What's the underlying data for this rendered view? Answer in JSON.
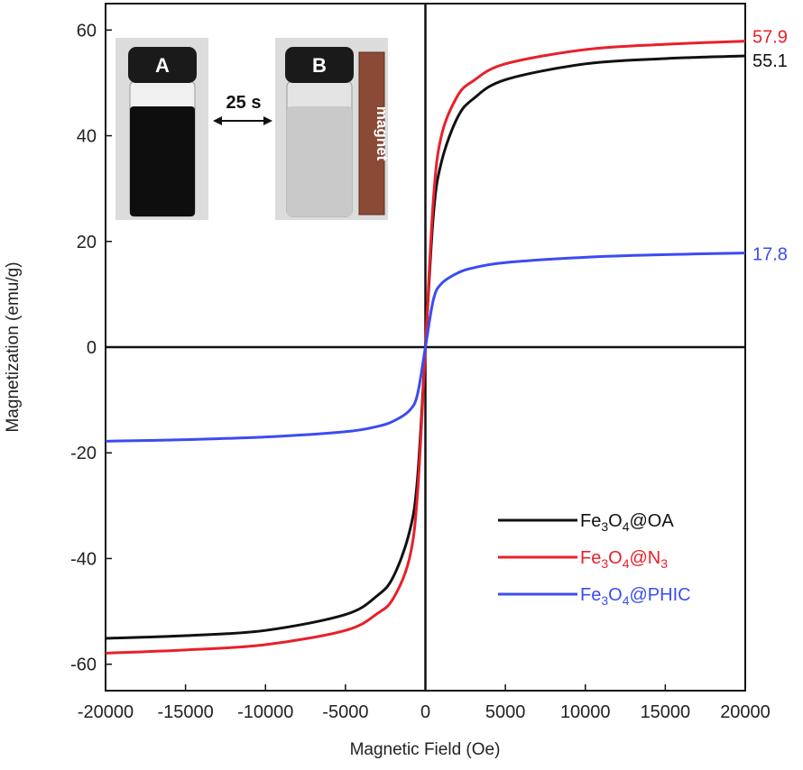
{
  "chart_data": {
    "type": "line",
    "xlabel": "Magnetic Field (Oe)",
    "ylabel": "Magnetization (emu/g)",
    "xlim": [
      -20000,
      20000
    ],
    "ylim": [
      -65,
      65
    ],
    "xticks": [
      "-20000",
      "-15000",
      "-10000",
      "-5000",
      "0",
      "5000",
      "10000",
      "15000",
      "20000"
    ],
    "xtick_values": [
      -20000,
      -15000,
      -10000,
      -5000,
      0,
      5000,
      10000,
      15000,
      20000
    ],
    "yticks": [
      "-60",
      "-40",
      "-20",
      "0",
      "20",
      "40",
      "60"
    ],
    "ytick_values": [
      -60,
      -40,
      -20,
      0,
      20,
      40,
      60
    ],
    "grid": false,
    "legend_position": "bottom-right",
    "series": [
      {
        "name": "Fe3O4@OA",
        "legend_parts": [
          [
            "Fe",
            ""
          ],
          [
            "3",
            "sub"
          ],
          [
            "O",
            ""
          ],
          [
            "4",
            "sub"
          ],
          [
            "@OA",
            ""
          ]
        ],
        "color": "#111111",
        "end_label": "55.1",
        "x": [
          -20000,
          -15000,
          -10000,
          -5000,
          -3000,
          -2000,
          -1000,
          -500,
          0,
          500,
          1000,
          2000,
          3000,
          5000,
          10000,
          15000,
          20000
        ],
        "y": [
          -55.1,
          -54.6,
          -53.6,
          -50.6,
          -47.0,
          -43.4,
          -35.0,
          -25.0,
          0,
          25.0,
          35.0,
          43.4,
          47.0,
          50.6,
          53.6,
          54.6,
          55.1
        ]
      },
      {
        "name": "Fe3O4@N3",
        "legend_parts": [
          [
            "Fe",
            ""
          ],
          [
            "3",
            "sub"
          ],
          [
            "O",
            ""
          ],
          [
            "4",
            "sub"
          ],
          [
            "@N",
            ""
          ],
          [
            "3",
            "sub"
          ]
        ],
        "color": "#e8202a",
        "end_label": "57.9",
        "x": [
          -20000,
          -15000,
          -10000,
          -5000,
          -3000,
          -2000,
          -1000,
          -500,
          0,
          500,
          1000,
          2000,
          3000,
          5000,
          10000,
          15000,
          20000
        ],
        "y": [
          -57.9,
          -57.3,
          -56.3,
          -53.6,
          -50.4,
          -47.5,
          -40.0,
          -28.0,
          0,
          28.0,
          40.0,
          47.5,
          50.4,
          53.6,
          56.3,
          57.3,
          57.9
        ]
      },
      {
        "name": "Fe3O4@PHIC",
        "legend_parts": [
          [
            "Fe",
            ""
          ],
          [
            "3",
            "sub"
          ],
          [
            "O",
            ""
          ],
          [
            "4",
            "sub"
          ],
          [
            "@PHIC",
            ""
          ]
        ],
        "color": "#3b4cf0",
        "end_label": "17.8",
        "x": [
          -20000,
          -15000,
          -10000,
          -5000,
          -3000,
          -2000,
          -1000,
          -500,
          0,
          500,
          1000,
          2000,
          3000,
          5000,
          10000,
          15000,
          20000
        ],
        "y": [
          -17.8,
          -17.5,
          -17.0,
          -16.0,
          -15.0,
          -14.0,
          -12.0,
          -9.0,
          0,
          9.0,
          12.0,
          14.0,
          15.0,
          16.0,
          17.0,
          17.5,
          17.8
        ]
      }
    ]
  },
  "inset": {
    "vial_a_label": "A",
    "vial_b_label": "B",
    "arrow_label": "25 s",
    "magnet_label": "magnet",
    "colors": {
      "vial_cap": "#1a1a1a",
      "vial_a_liquid": "#0e0e0e",
      "vial_b_liquid": "#c9c9c9",
      "magnet": "#8a4a35",
      "background": "#d8d8d8"
    }
  }
}
